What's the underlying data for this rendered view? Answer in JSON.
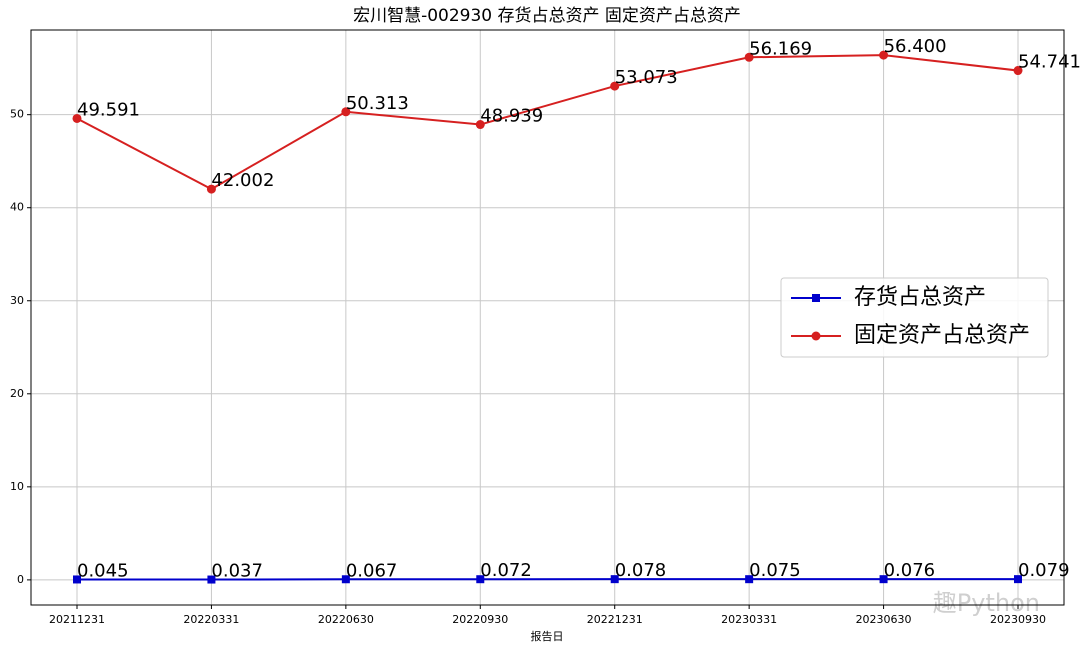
{
  "chart_data": {
    "type": "line",
    "title": "宏川智慧-002930 存货占总资产 固定资产占总资产",
    "x_label": "报告日",
    "categories": [
      "20211231",
      "20220331",
      "20220630",
      "20220930",
      "20221231",
      "20230331",
      "20230630",
      "20230930"
    ],
    "series": [
      {
        "name": "存货占总资产",
        "color": "#0000cc",
        "marker": "square",
        "values": [
          0.045,
          0.037,
          0.067,
          0.072,
          0.078,
          0.075,
          0.076,
          0.079
        ],
        "value_labels": [
          "0.045",
          "0.037",
          "0.067",
          "0.072",
          "0.078",
          "0.075",
          "0.076",
          "0.079"
        ]
      },
      {
        "name": "固定资产占总资产",
        "color": "#d62020",
        "marker": "circle",
        "values": [
          49.591,
          42.002,
          50.313,
          48.939,
          53.073,
          56.169,
          56.4,
          54.741
        ],
        "value_labels": [
          "49.591",
          "42.002",
          "50.313",
          "48.939",
          "53.073",
          "56.169",
          "56.400",
          "54.741"
        ]
      }
    ],
    "ylim": [
      -2.7,
      59.1
    ],
    "yticks": [
      0,
      10,
      20,
      30,
      40,
      50
    ],
    "grid": true,
    "legend": "right",
    "watermark": "趣Python"
  }
}
